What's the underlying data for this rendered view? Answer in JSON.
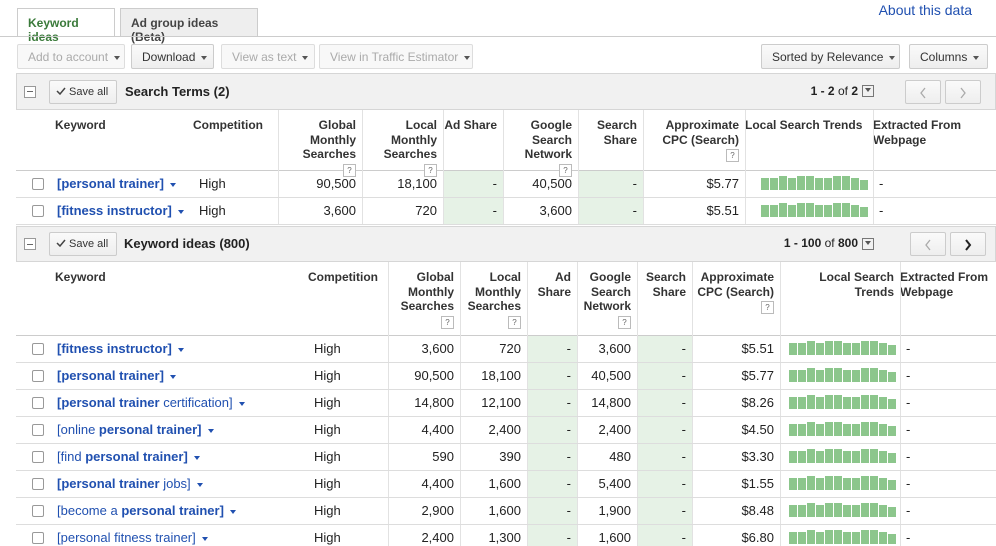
{
  "tabs": [
    "Keyword ideas",
    "Ad group ideas (Beta)"
  ],
  "about_link": "About this data",
  "toolbar": {
    "left": [
      {
        "label": "Add to account",
        "enabled": false
      },
      {
        "label": "Download",
        "enabled": true
      },
      {
        "label": "View as text",
        "enabled": false
      },
      {
        "label": "View in Traffic Estimator",
        "enabled": false
      }
    ],
    "right": [
      {
        "label": "Sorted by Relevance",
        "enabled": true
      },
      {
        "label": "Columns",
        "enabled": true
      }
    ]
  },
  "help_icon": "?",
  "sections": [
    {
      "save_all": "Save all",
      "title": "Search Terms (2)",
      "pagination": {
        "range": "1 - 2",
        "of": "of",
        "total": "2"
      },
      "columns": [
        "Keyword",
        "Competition",
        "Global Monthly Searches",
        "Local Monthly Searches",
        "Ad Share",
        "Google Search Network",
        "Search Share",
        "Approximate CPC (Search)",
        "Local Search Trends",
        "Extracted From Webpage"
      ],
      "rows": [
        {
          "keyword": [
            {
              "text": "[personal trainer]",
              "bold": true
            }
          ],
          "cells": [
            "High",
            "90,500",
            "18,100",
            "-",
            "40,500",
            "-",
            "$5.77",
            "-"
          ]
        },
        {
          "keyword": [
            {
              "text": "[fitness instructor]",
              "bold": true
            }
          ],
          "cells": [
            "High",
            "3,600",
            "720",
            "-",
            "3,600",
            "-",
            "$5.51",
            "-"
          ]
        }
      ]
    },
    {
      "save_all": "Save all",
      "title": "Keyword ideas (800)",
      "pagination": {
        "range": "1 - 100",
        "of": "of",
        "total": "800"
      },
      "columns": [
        "Keyword",
        "Competition",
        "Global Monthly Searches",
        "Local Monthly Searches",
        "Ad Share",
        "Google Search Network",
        "Search Share",
        "Approximate CPC (Search)",
        "Local Search Trends",
        "Extracted From Webpage"
      ],
      "rows": [
        {
          "keyword": [
            {
              "text": "[fitness instructor]",
              "bold": true
            }
          ],
          "cells": [
            "High",
            "3,600",
            "720",
            "-",
            "3,600",
            "-",
            "$5.51",
            "-"
          ]
        },
        {
          "keyword": [
            {
              "text": "[personal trainer]",
              "bold": true
            }
          ],
          "cells": [
            "High",
            "90,500",
            "18,100",
            "-",
            "40,500",
            "-",
            "$5.77",
            "-"
          ]
        },
        {
          "keyword": [
            {
              "text": "[personal trainer",
              "bold": true
            },
            {
              "text": " certification]",
              "bold": false
            }
          ],
          "cells": [
            "High",
            "14,800",
            "12,100",
            "-",
            "14,800",
            "-",
            "$8.26",
            "-"
          ]
        },
        {
          "keyword": [
            {
              "text": "[online ",
              "bold": false
            },
            {
              "text": "personal trainer]",
              "bold": true
            }
          ],
          "cells": [
            "High",
            "4,400",
            "2,400",
            "-",
            "2,400",
            "-",
            "$4.50",
            "-"
          ]
        },
        {
          "keyword": [
            {
              "text": "[find ",
              "bold": false
            },
            {
              "text": "personal trainer]",
              "bold": true
            }
          ],
          "cells": [
            "High",
            "590",
            "390",
            "-",
            "480",
            "-",
            "$3.30",
            "-"
          ]
        },
        {
          "keyword": [
            {
              "text": "[personal trainer",
              "bold": true
            },
            {
              "text": " jobs]",
              "bold": false
            }
          ],
          "cells": [
            "High",
            "4,400",
            "1,600",
            "-",
            "5,400",
            "-",
            "$1.55",
            "-"
          ]
        },
        {
          "keyword": [
            {
              "text": "[become a ",
              "bold": false
            },
            {
              "text": "personal trainer]",
              "bold": true
            }
          ],
          "cells": [
            "High",
            "2,900",
            "1,600",
            "-",
            "1,900",
            "-",
            "$8.48",
            "-"
          ]
        },
        {
          "keyword": [
            {
              "text": "[personal fitness trainer]",
              "bold": false
            }
          ],
          "cells": [
            "High",
            "2,400",
            "1,300",
            "-",
            "1,600",
            "-",
            "$6.80",
            "-"
          ]
        }
      ]
    }
  ]
}
